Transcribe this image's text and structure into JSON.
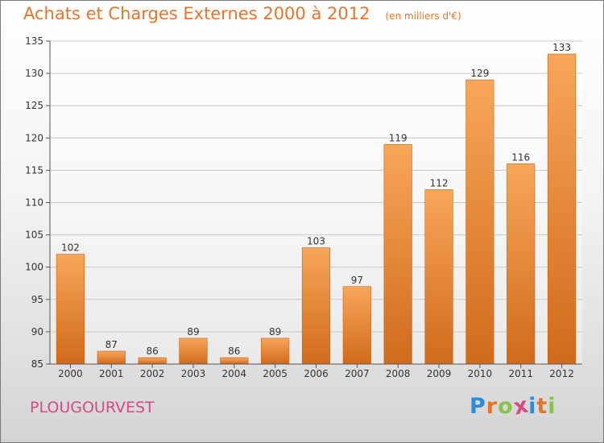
{
  "header": {
    "title": "Achats et Charges Externes 2000 à 2012",
    "unit": "(en milliers d'€)"
  },
  "footer": {
    "place": "PLOUGOURVEST",
    "logo_letters": [
      "P",
      "r",
      "o",
      "x",
      "i",
      "t",
      "i"
    ],
    "logo_colors": [
      "#2e8bd4",
      "#e8742a",
      "#8bc34a",
      "#d64a86",
      "#2e8bd4",
      "#e8742a",
      "#8bc34a"
    ]
  },
  "colors": {
    "title": "#e8742a",
    "bar_top": "#f8a65a",
    "bar_bottom": "#d06a1c",
    "place": "#d64a86"
  },
  "chart_data": {
    "type": "bar",
    "title": "Achats et Charges Externes 2000 à 2012",
    "categories": [
      "2000",
      "2001",
      "2002",
      "2003",
      "2004",
      "2005",
      "2006",
      "2007",
      "2008",
      "2009",
      "2010",
      "2011",
      "2012"
    ],
    "values": [
      102,
      87,
      86,
      89,
      86,
      89,
      103,
      97,
      119,
      112,
      129,
      116,
      133
    ],
    "ylim": [
      85,
      135
    ],
    "yticks": [
      85,
      90,
      95,
      100,
      105,
      110,
      115,
      120,
      125,
      130,
      135
    ],
    "grid": true,
    "legend": "none"
  }
}
